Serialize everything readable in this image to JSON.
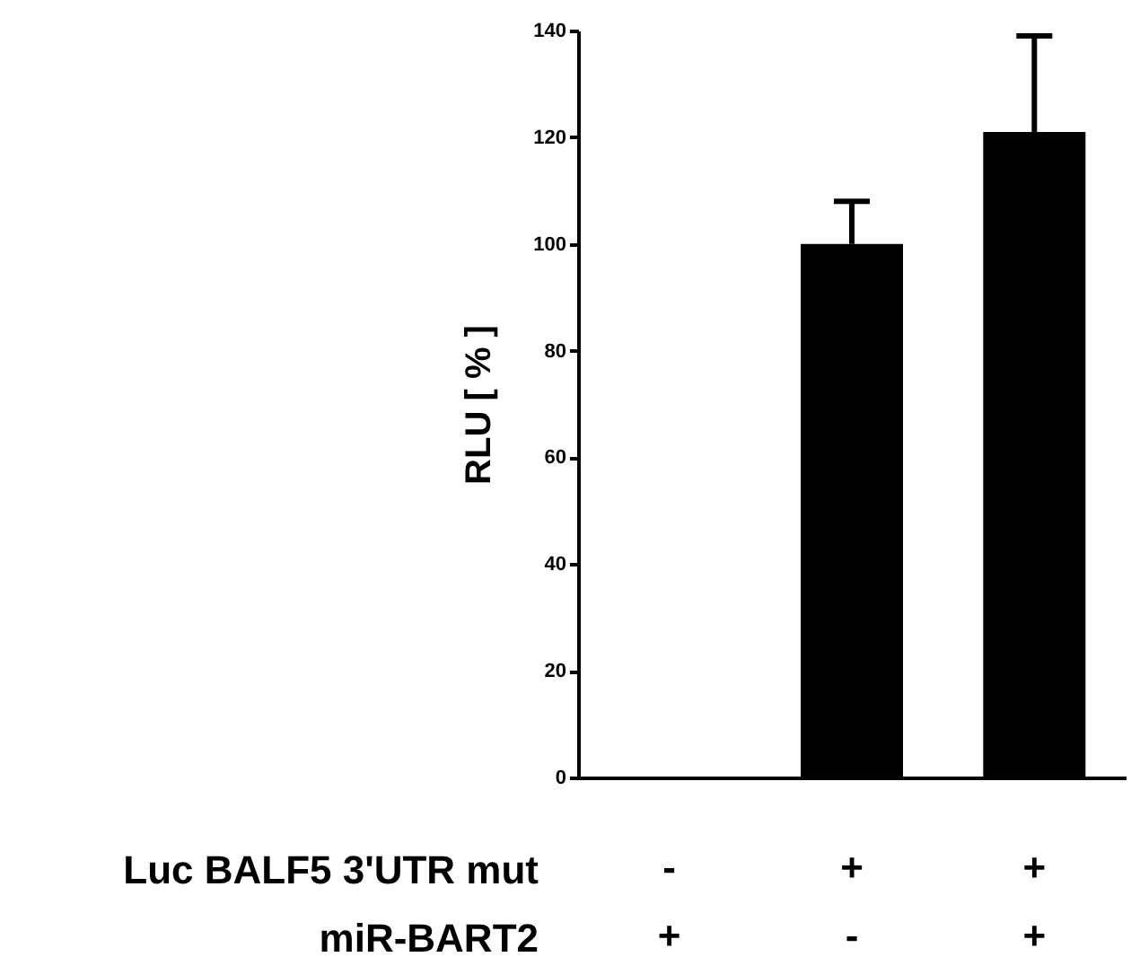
{
  "chart_data": {
    "type": "bar",
    "ylabel": "RLU [ % ]",
    "categories": [
      "-\n+",
      "+\n-",
      "+\n+"
    ],
    "values": [
      0,
      100,
      121
    ],
    "errors": [
      null,
      [
        100,
        108
      ],
      [
        121,
        139
      ]
    ],
    "color": "#000000",
    "ylim": [
      0,
      140
    ],
    "yticks": [
      0,
      20,
      40,
      60,
      80,
      100,
      120,
      140
    ],
    "grid": false,
    "annotations": [
      "Luc BALF5 3'UTR mut",
      "miR-BART2"
    ]
  }
}
